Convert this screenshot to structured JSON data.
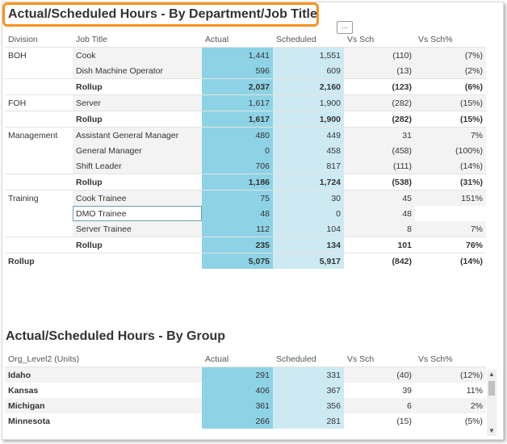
{
  "title": "Actual/Scheduled Hours - By Department/Job Title",
  "more_label": "...",
  "table1": {
    "columns": [
      "Division",
      "Job Title",
      "Actual",
      "Scheduled",
      "Vs Sch",
      "Vs Sch%"
    ],
    "rows": [
      {
        "division": "BOH",
        "job": "Cook",
        "actual": "1,441",
        "scheduled": "1,551",
        "vs": "(110)",
        "pct": "(7%)"
      },
      {
        "division": "",
        "job": "Dish Machine Operator",
        "actual": "596",
        "scheduled": "609",
        "vs": "(13)",
        "pct": "(2%)"
      },
      {
        "division": "",
        "job": "Rollup",
        "actual": "2,037",
        "scheduled": "2,160",
        "vs": "(123)",
        "pct": "(6%)"
      },
      {
        "division": "FOH",
        "job": "Server",
        "actual": "1,617",
        "scheduled": "1,900",
        "vs": "(282)",
        "pct": "(15%)"
      },
      {
        "division": "",
        "job": "Rollup",
        "actual": "1,617",
        "scheduled": "1,900",
        "vs": "(282)",
        "pct": "(15%)"
      },
      {
        "division": "Management",
        "job": "Assistant General Manager",
        "actual": "480",
        "scheduled": "449",
        "vs": "31",
        "pct": "7%"
      },
      {
        "division": "",
        "job": "General Manager",
        "actual": "0",
        "scheduled": "458",
        "vs": "(458)",
        "pct": "(100%)"
      },
      {
        "division": "",
        "job": "Shift Leader",
        "actual": "706",
        "scheduled": "817",
        "vs": "(111)",
        "pct": "(14%)"
      },
      {
        "division": "",
        "job": "Rollup",
        "actual": "1,186",
        "scheduled": "1,724",
        "vs": "(538)",
        "pct": "(31%)"
      },
      {
        "division": "Training",
        "job": "Cook Trainee",
        "actual": "75",
        "scheduled": "30",
        "vs": "45",
        "pct": "151%"
      },
      {
        "division": "",
        "job": "DMO Trainee",
        "actual": "48",
        "scheduled": "0",
        "vs": "48",
        "pct": ""
      },
      {
        "division": "",
        "job": "Server Trainee",
        "actual": "112",
        "scheduled": "104",
        "vs": "8",
        "pct": "7%"
      },
      {
        "division": "",
        "job": "Rollup",
        "actual": "235",
        "scheduled": "134",
        "vs": "101",
        "pct": "76%"
      }
    ],
    "total": {
      "label": "Rollup",
      "actual": "5,075",
      "scheduled": "5,917",
      "vs": "(842)",
      "pct": "(14%)"
    }
  },
  "title2": "Actual/Scheduled Hours - By Group",
  "table2": {
    "columns": [
      "Org_Level2 (Units)",
      "Actual",
      "Scheduled",
      "Vs Sch",
      "Vs Sch%"
    ],
    "rows": [
      {
        "group": "Idaho",
        "actual": "291",
        "scheduled": "331",
        "vs": "(40)",
        "pct": "(12%)"
      },
      {
        "group": "Kansas",
        "actual": "406",
        "scheduled": "367",
        "vs": "39",
        "pct": "11%"
      },
      {
        "group": "Michigan",
        "actual": "361",
        "scheduled": "356",
        "vs": "6",
        "pct": "2%"
      },
      {
        "group": "Minnesota",
        "actual": "266",
        "scheduled": "281",
        "vs": "(15)",
        "pct": "(5%)"
      }
    ]
  },
  "scroll": {
    "up": "▲",
    "down": "▼"
  }
}
